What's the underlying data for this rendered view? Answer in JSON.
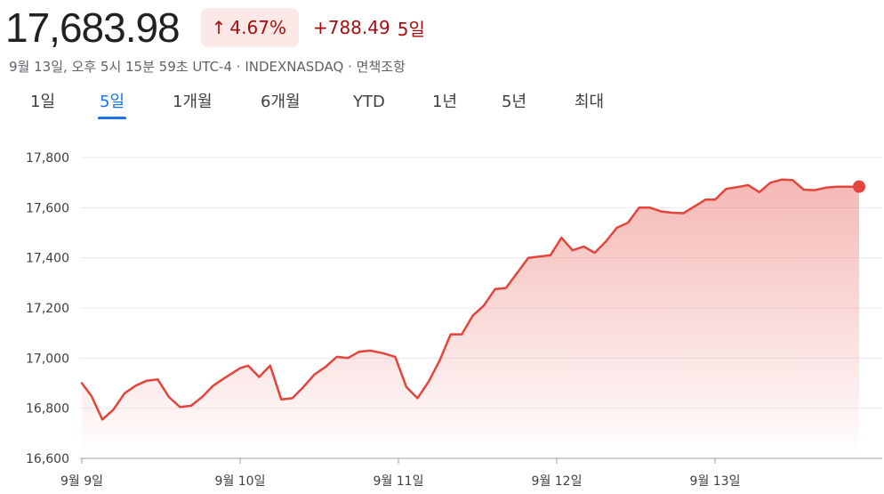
{
  "quote": {
    "price": "17,683.98",
    "change_percent": "4.67%",
    "change_arrow": "↑",
    "change_value": "+788.49",
    "period_label": "5일",
    "meta": "9월 13일, 오후 5시 15분 59초 UTC-4 · INDEXNASDAQ · 면책조항",
    "accent_color": "#a50e0e",
    "badge_bg": "#fce8e6"
  },
  "tabs": [
    {
      "label": "1일",
      "active": false
    },
    {
      "label": "5일",
      "active": true
    },
    {
      "label": "1개월",
      "active": false
    },
    {
      "label": "6개월",
      "active": false
    },
    {
      "label": "YTD",
      "active": false
    },
    {
      "label": "1년",
      "active": false
    },
    {
      "label": "5년",
      "active": false
    },
    {
      "label": "최대",
      "active": false
    }
  ],
  "chart_data": {
    "type": "area",
    "line_color": "#e3443b",
    "ylim": [
      16600,
      17800
    ],
    "yticks": [
      16600,
      16800,
      17000,
      17200,
      17400,
      17600,
      17800
    ],
    "ytick_labels": [
      "16,600",
      "16,800",
      "17,000",
      "17,200",
      "17,400",
      "17,600",
      "17,800"
    ],
    "x_range": [
      0,
      5
    ],
    "xticks": [
      0,
      1,
      2,
      3,
      4
    ],
    "xtick_labels": [
      "9월 9일",
      "9월 10일",
      "9월 11일",
      "9월 12일",
      "9월 13일"
    ],
    "grid": true,
    "series": [
      {
        "x": [
          0,
          0.06,
          0.13,
          0.2,
          0.27,
          0.34,
          0.41,
          0.48,
          0.55,
          0.62,
          0.69,
          0.76,
          0.83,
          0.9,
          1.0,
          1.05,
          1.12,
          1.19,
          1.26,
          1.33,
          1.4,
          1.47,
          1.54,
          1.61,
          1.68,
          1.75,
          1.82,
          1.9,
          1.98,
          2.05,
          2.12,
          2.19,
          2.26,
          2.33,
          2.4,
          2.47,
          2.54,
          2.61,
          2.68,
          2.75,
          2.82,
          2.89,
          2.96,
          3.03,
          3.1,
          3.17,
          3.24,
          3.31,
          3.38,
          3.45,
          3.52,
          3.59,
          3.66,
          3.73,
          3.8,
          3.87,
          3.94,
          4.0,
          4.07,
          4.14,
          4.21,
          4.28,
          4.35,
          4.42,
          4.49,
          4.56,
          4.63,
          4.7,
          4.77,
          4.84,
          4.91
        ],
        "y": [
          16900,
          16850,
          16755,
          16795,
          16860,
          16890,
          16910,
          16915,
          16845,
          16805,
          16810,
          16845,
          16890,
          16920,
          16960,
          16970,
          16925,
          16970,
          16835,
          16840,
          16885,
          16935,
          16965,
          17005,
          17000,
          17025,
          17030,
          17020,
          17005,
          16885,
          16840,
          16905,
          16990,
          17095,
          17095,
          17170,
          17210,
          17275,
          17280,
          17340,
          17400,
          17405,
          17410,
          17480,
          17430,
          17445,
          17420,
          17465,
          17520,
          17540,
          17600,
          17600,
          17585,
          17580,
          17578,
          17605,
          17632,
          17632,
          17675,
          17682,
          17690,
          17662,
          17700,
          17712,
          17710,
          17672,
          17670,
          17680,
          17684,
          17684,
          17684
        ]
      }
    ]
  }
}
